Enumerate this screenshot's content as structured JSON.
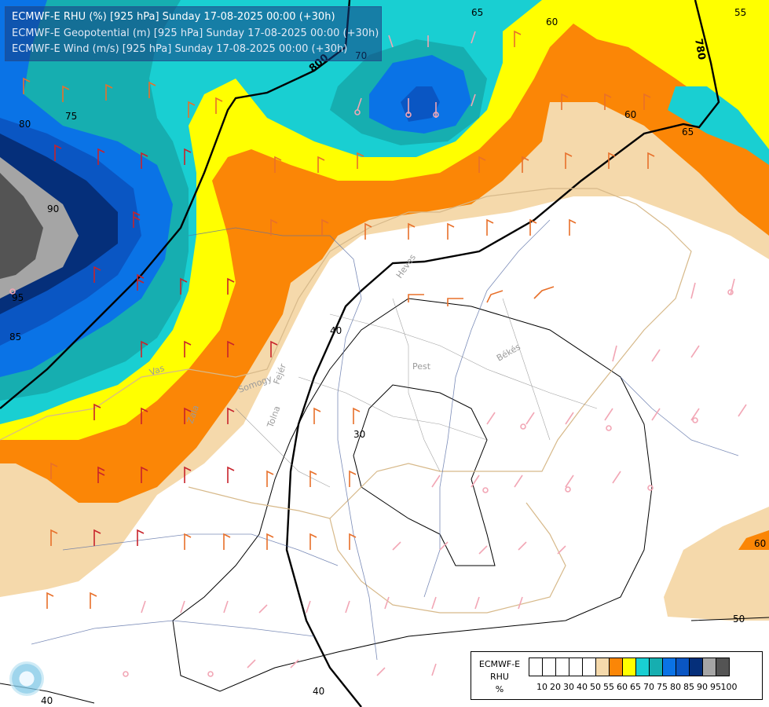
{
  "header": {
    "line1": "ECMWF-E RHU (%) [925 hPa] Sunday 17-08-2025 00:00 (+30h)",
    "line2": "ECMWF-E Geopotential (m) [925 hPa] Sunday 17-08-2025 00:00 (+30h)",
    "line3": "ECMWF-E Wind (m/s) [925 hPa] Sunday 17-08-2025 00:00 (+30h)"
  },
  "legend": {
    "title_line1": "ECMWF-E",
    "title_line2": "RHU",
    "title_line3": "%",
    "colors": [
      "#ffffff",
      "#ffffff",
      "#ffffff",
      "#ffffff",
      "#ffffff",
      "#f5d9ab",
      "#fb8606",
      "#ffff00",
      "#19cfd2",
      "#16aeb0",
      "#0a73e6",
      "#0a56c3",
      "#052f7a",
      "#a5a5a5",
      "#545454"
    ],
    "ticks": [
      "10",
      "20",
      "30",
      "40",
      "50",
      "55",
      "60",
      "65",
      "70",
      "75",
      "80",
      "85",
      "90",
      "95",
      "100"
    ]
  },
  "contour_labels": {
    "rhu": [
      "80",
      "75",
      "90",
      "95",
      "85",
      "65",
      "60",
      "55",
      "70",
      "60",
      "65",
      "40",
      "30",
      "50",
      "40",
      "40",
      "60"
    ],
    "geopotential": [
      "800",
      "780"
    ]
  },
  "region_labels": [
    "Pest",
    "Békés",
    "Heves",
    "Fejér",
    "Somogy",
    "Zala",
    "Vas",
    "Tolna"
  ]
}
